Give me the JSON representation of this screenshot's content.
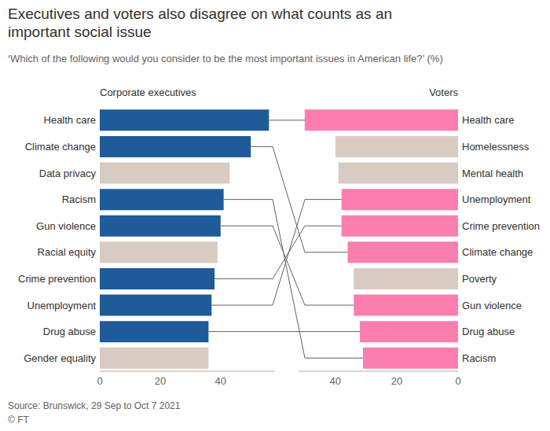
{
  "title": "Executives and voters also disagree on what counts as an important social issue",
  "subtitle": "‘Which of the following would you consider to be the most important issues in American life?’ (%)",
  "source": "Source: Brunswick, 29 Sep to Oct 7 2021",
  "credit": "© FT",
  "chart_data": [
    {
      "type": "bar",
      "orientation": "horizontal",
      "title": "Corporate executives",
      "categories": [
        "Health care",
        "Climate change",
        "Data privacy",
        "Racism",
        "Gun violence",
        "Racial equity",
        "Crime prevention",
        "Unemployment",
        "Drug abuse",
        "Gender equality"
      ],
      "values": [
        56,
        50,
        43,
        41,
        40,
        39,
        38,
        37,
        36,
        36
      ],
      "colors": [
        "#1f5b98",
        "#1f5b98",
        "#d8ccc2",
        "#1f5b98",
        "#1f5b98",
        "#d8ccc2",
        "#1f5b98",
        "#1f5b98",
        "#1f5b98",
        "#d8ccc2"
      ],
      "xlim": [
        0,
        58
      ],
      "xticks": [
        0,
        20,
        40
      ],
      "grid": false
    },
    {
      "type": "bar",
      "orientation": "horizontal",
      "title": "Voters",
      "categories": [
        "Health care",
        "Homelessness",
        "Mental health",
        "Unemployment",
        "Crime prevention",
        "Climate change",
        "Poverty",
        "Gun violence",
        "Drug abuse",
        "Racism"
      ],
      "values": [
        50,
        40,
        39,
        38,
        38,
        36,
        34,
        34,
        32,
        31
      ],
      "colors": [
        "#fb7eae",
        "#d8ccc2",
        "#d8ccc2",
        "#fb7eae",
        "#fb7eae",
        "#fb7eae",
        "#d8ccc2",
        "#fb7eae",
        "#fb7eae",
        "#fb7eae"
      ],
      "xlim": [
        52,
        0
      ],
      "xticks": [
        0,
        20,
        40
      ],
      "grid": false
    }
  ]
}
